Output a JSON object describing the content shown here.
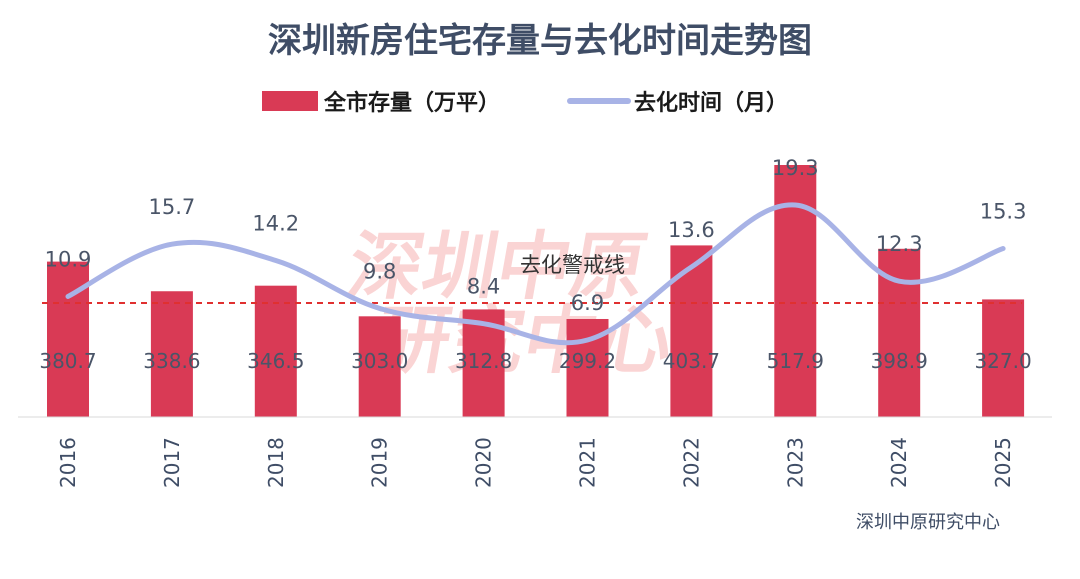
{
  "chart_data": {
    "type": "bar+line",
    "title": "深圳新房住宅存量与去化时间走势图",
    "categories": [
      "2016",
      "2017",
      "2018",
      "2019",
      "2020",
      "2021",
      "2022",
      "2023",
      "2024",
      "2025"
    ],
    "series": [
      {
        "name": "全市存量（万平）",
        "type": "bar",
        "color": "#d93a55",
        "values": [
          380.7,
          338.6,
          346.5,
          303.0,
          312.8,
          299.2,
          403.7,
          517.9,
          398.9,
          327.0
        ],
        "labels": [
          "380.7",
          "338.6",
          "346.5",
          "303.0",
          "312.8",
          "299.2",
          "403.7",
          "517.9",
          "398.9",
          "327.0"
        ]
      },
      {
        "name": "去化时间（月）",
        "type": "line",
        "color": "#a8b3e6",
        "values": [
          10.9,
          15.7,
          14.2,
          9.8,
          8.4,
          6.9,
          13.6,
          19.3,
          12.3,
          15.3
        ],
        "labels": [
          "10.9",
          "15.7",
          "14.2",
          "9.8",
          "8.4",
          "6.9",
          "13.6",
          "19.3",
          "12.3",
          "15.3"
        ]
      }
    ],
    "reference_line": {
      "label": "去化警戒线",
      "color": "#e03030",
      "style": "dashed"
    },
    "legend_position": "top-center",
    "grid": false,
    "source": "深圳中原研究中心",
    "watermark": [
      "深圳中原",
      "研究中心"
    ],
    "bar_ylim": [
      0,
      620
    ],
    "line_ylim": [
      0,
      22
    ]
  }
}
